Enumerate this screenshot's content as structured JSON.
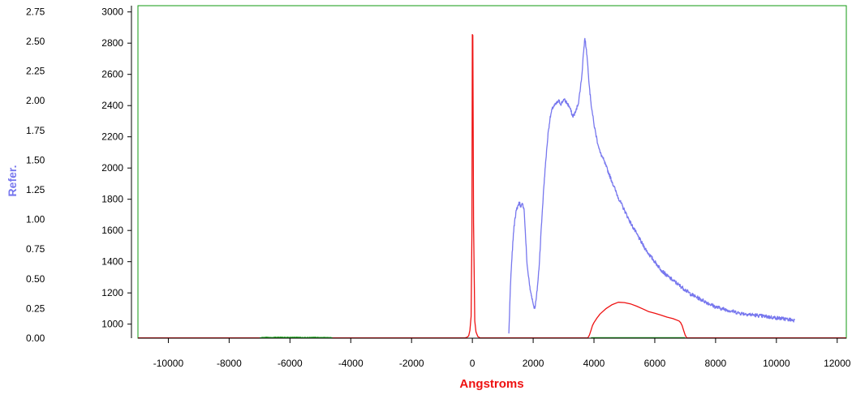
{
  "chart_data": {
    "type": "line",
    "xlabel": "Angstroms",
    "ylabel_left": "Refer.",
    "x_ticks": [
      -10000,
      -8000,
      -6000,
      -4000,
      -2000,
      0,
      2000,
      4000,
      6000,
      8000,
      10000,
      12000
    ],
    "x_tick_labels": [
      "-10000",
      "-8000",
      "-6000",
      "-4000",
      "-2000",
      "0",
      "2000",
      "4000",
      "6000",
      "8000",
      "10000",
      "12000"
    ],
    "xlim": [
      -11000,
      12300
    ],
    "y_left_ticks": [
      0,
      0.25,
      0.5,
      0.75,
      1.0,
      1.25,
      1.5,
      1.75,
      2.0,
      2.25,
      2.5,
      2.75
    ],
    "y_left_tick_labels": [
      "0.00",
      "0.25",
      "0.50",
      "0.75",
      "1.00",
      "1.25",
      "1.50",
      "1.75",
      "2.00",
      "2.25",
      "2.50",
      "2.75"
    ],
    "y_left_lim": [
      0,
      2.8
    ],
    "y_right_ticks": [
      1000,
      1200,
      1400,
      1600,
      1800,
      2000,
      2200,
      2400,
      2600,
      2800,
      3000
    ],
    "y_right_tick_labels": [
      "1000",
      "1200",
      "1400",
      "1600",
      "1800",
      "2000",
      "2200",
      "2400",
      "2600",
      "2800",
      "3000"
    ],
    "y_right_lim": [
      910,
      3040
    ],
    "grid": false,
    "colors": {
      "reference": "#7777ee",
      "red_series": "#ee1111",
      "green_series": "#22aa22",
      "frame": "#119911",
      "axis": "#000000",
      "ylabel": "#7777ee",
      "xlabel": "#ee1111"
    },
    "series": [
      {
        "axis": "right",
        "color": "#7777ee",
        "noise": 12,
        "x": [
          1200,
          1230,
          1260,
          1300,
          1350,
          1400,
          1450,
          1500,
          1550,
          1600,
          1650,
          1700,
          1750,
          1800,
          1850,
          1900,
          1950,
          2000,
          2050,
          2100,
          2150,
          2200,
          2250,
          2300,
          2350,
          2400,
          2450,
          2500,
          2550,
          2600,
          2650,
          2700,
          2750,
          2800,
          2850,
          2900,
          2950,
          3000,
          3100,
          3200,
          3300,
          3400,
          3500,
          3600,
          3650,
          3700,
          3750,
          3800,
          3850,
          3900,
          3950,
          4000,
          4050,
          4100,
          4150,
          4200,
          4300,
          4400,
          4500,
          4600,
          4700,
          4800,
          5000,
          5200,
          5400,
          5600,
          5800,
          6000,
          6200,
          6400,
          6600,
          6800,
          7000,
          7200,
          7400,
          7600,
          7800,
          8000,
          8200,
          8400,
          8600,
          8800,
          9000,
          9200,
          9400,
          9600,
          9800,
          10000,
          10200,
          10400,
          10600
        ],
        "y": [
          940,
          1120,
          1280,
          1420,
          1580,
          1680,
          1730,
          1760,
          1780,
          1750,
          1770,
          1740,
          1560,
          1380,
          1300,
          1220,
          1180,
          1130,
          1100,
          1160,
          1260,
          1380,
          1560,
          1720,
          1880,
          2010,
          2130,
          2240,
          2310,
          2360,
          2390,
          2400,
          2410,
          2420,
          2430,
          2410,
          2420,
          2440,
          2420,
          2390,
          2330,
          2360,
          2430,
          2590,
          2730,
          2830,
          2760,
          2650,
          2520,
          2420,
          2350,
          2280,
          2230,
          2180,
          2140,
          2100,
          2060,
          2010,
          1960,
          1910,
          1860,
          1810,
          1730,
          1650,
          1580,
          1510,
          1450,
          1400,
          1350,
          1310,
          1280,
          1250,
          1220,
          1190,
          1170,
          1150,
          1130,
          1110,
          1100,
          1090,
          1080,
          1070,
          1065,
          1060,
          1055,
          1050,
          1045,
          1040,
          1035,
          1030,
          1025
        ]
      },
      {
        "axis": "right",
        "color": "#ee1111",
        "noise": 0,
        "x": [
          -11000,
          -250,
          -180,
          -120,
          -80,
          -40,
          -15,
          0,
          15,
          40,
          80,
          120,
          180,
          250,
          3800,
          3850,
          3900,
          3950,
          4000,
          4100,
          4200,
          4400,
          4600,
          4800,
          5000,
          5200,
          5400,
          5600,
          5800,
          6000,
          6200,
          6400,
          6600,
          6800,
          6850,
          6900,
          6950,
          7000,
          7050,
          12300
        ],
        "y": [
          912,
          912,
          915,
          925,
          960,
          1050,
          1600,
          2855,
          2850,
          1650,
          1020,
          950,
          920,
          912,
          912,
          930,
          960,
          990,
          1010,
          1040,
          1065,
          1100,
          1125,
          1140,
          1138,
          1130,
          1115,
          1098,
          1080,
          1070,
          1058,
          1045,
          1035,
          1020,
          1010,
          990,
          960,
          930,
          912,
          912
        ]
      },
      {
        "axis": "right",
        "color": "#22aa22",
        "noise": 2,
        "x": [
          -7000,
          -6800,
          -6600,
          -6400,
          -6200,
          -6000,
          -5800,
          -5600,
          -5400,
          -5200,
          -5000,
          -4800,
          -4600
        ],
        "y": [
          913,
          915,
          914,
          916,
          915,
          915,
          916,
          915,
          914,
          915,
          914,
          914,
          913
        ]
      },
      {
        "axis": "right",
        "color": "#22aa22",
        "noise": 0,
        "x": [
          3900,
          7000
        ],
        "y": [
          913,
          913
        ]
      }
    ]
  }
}
